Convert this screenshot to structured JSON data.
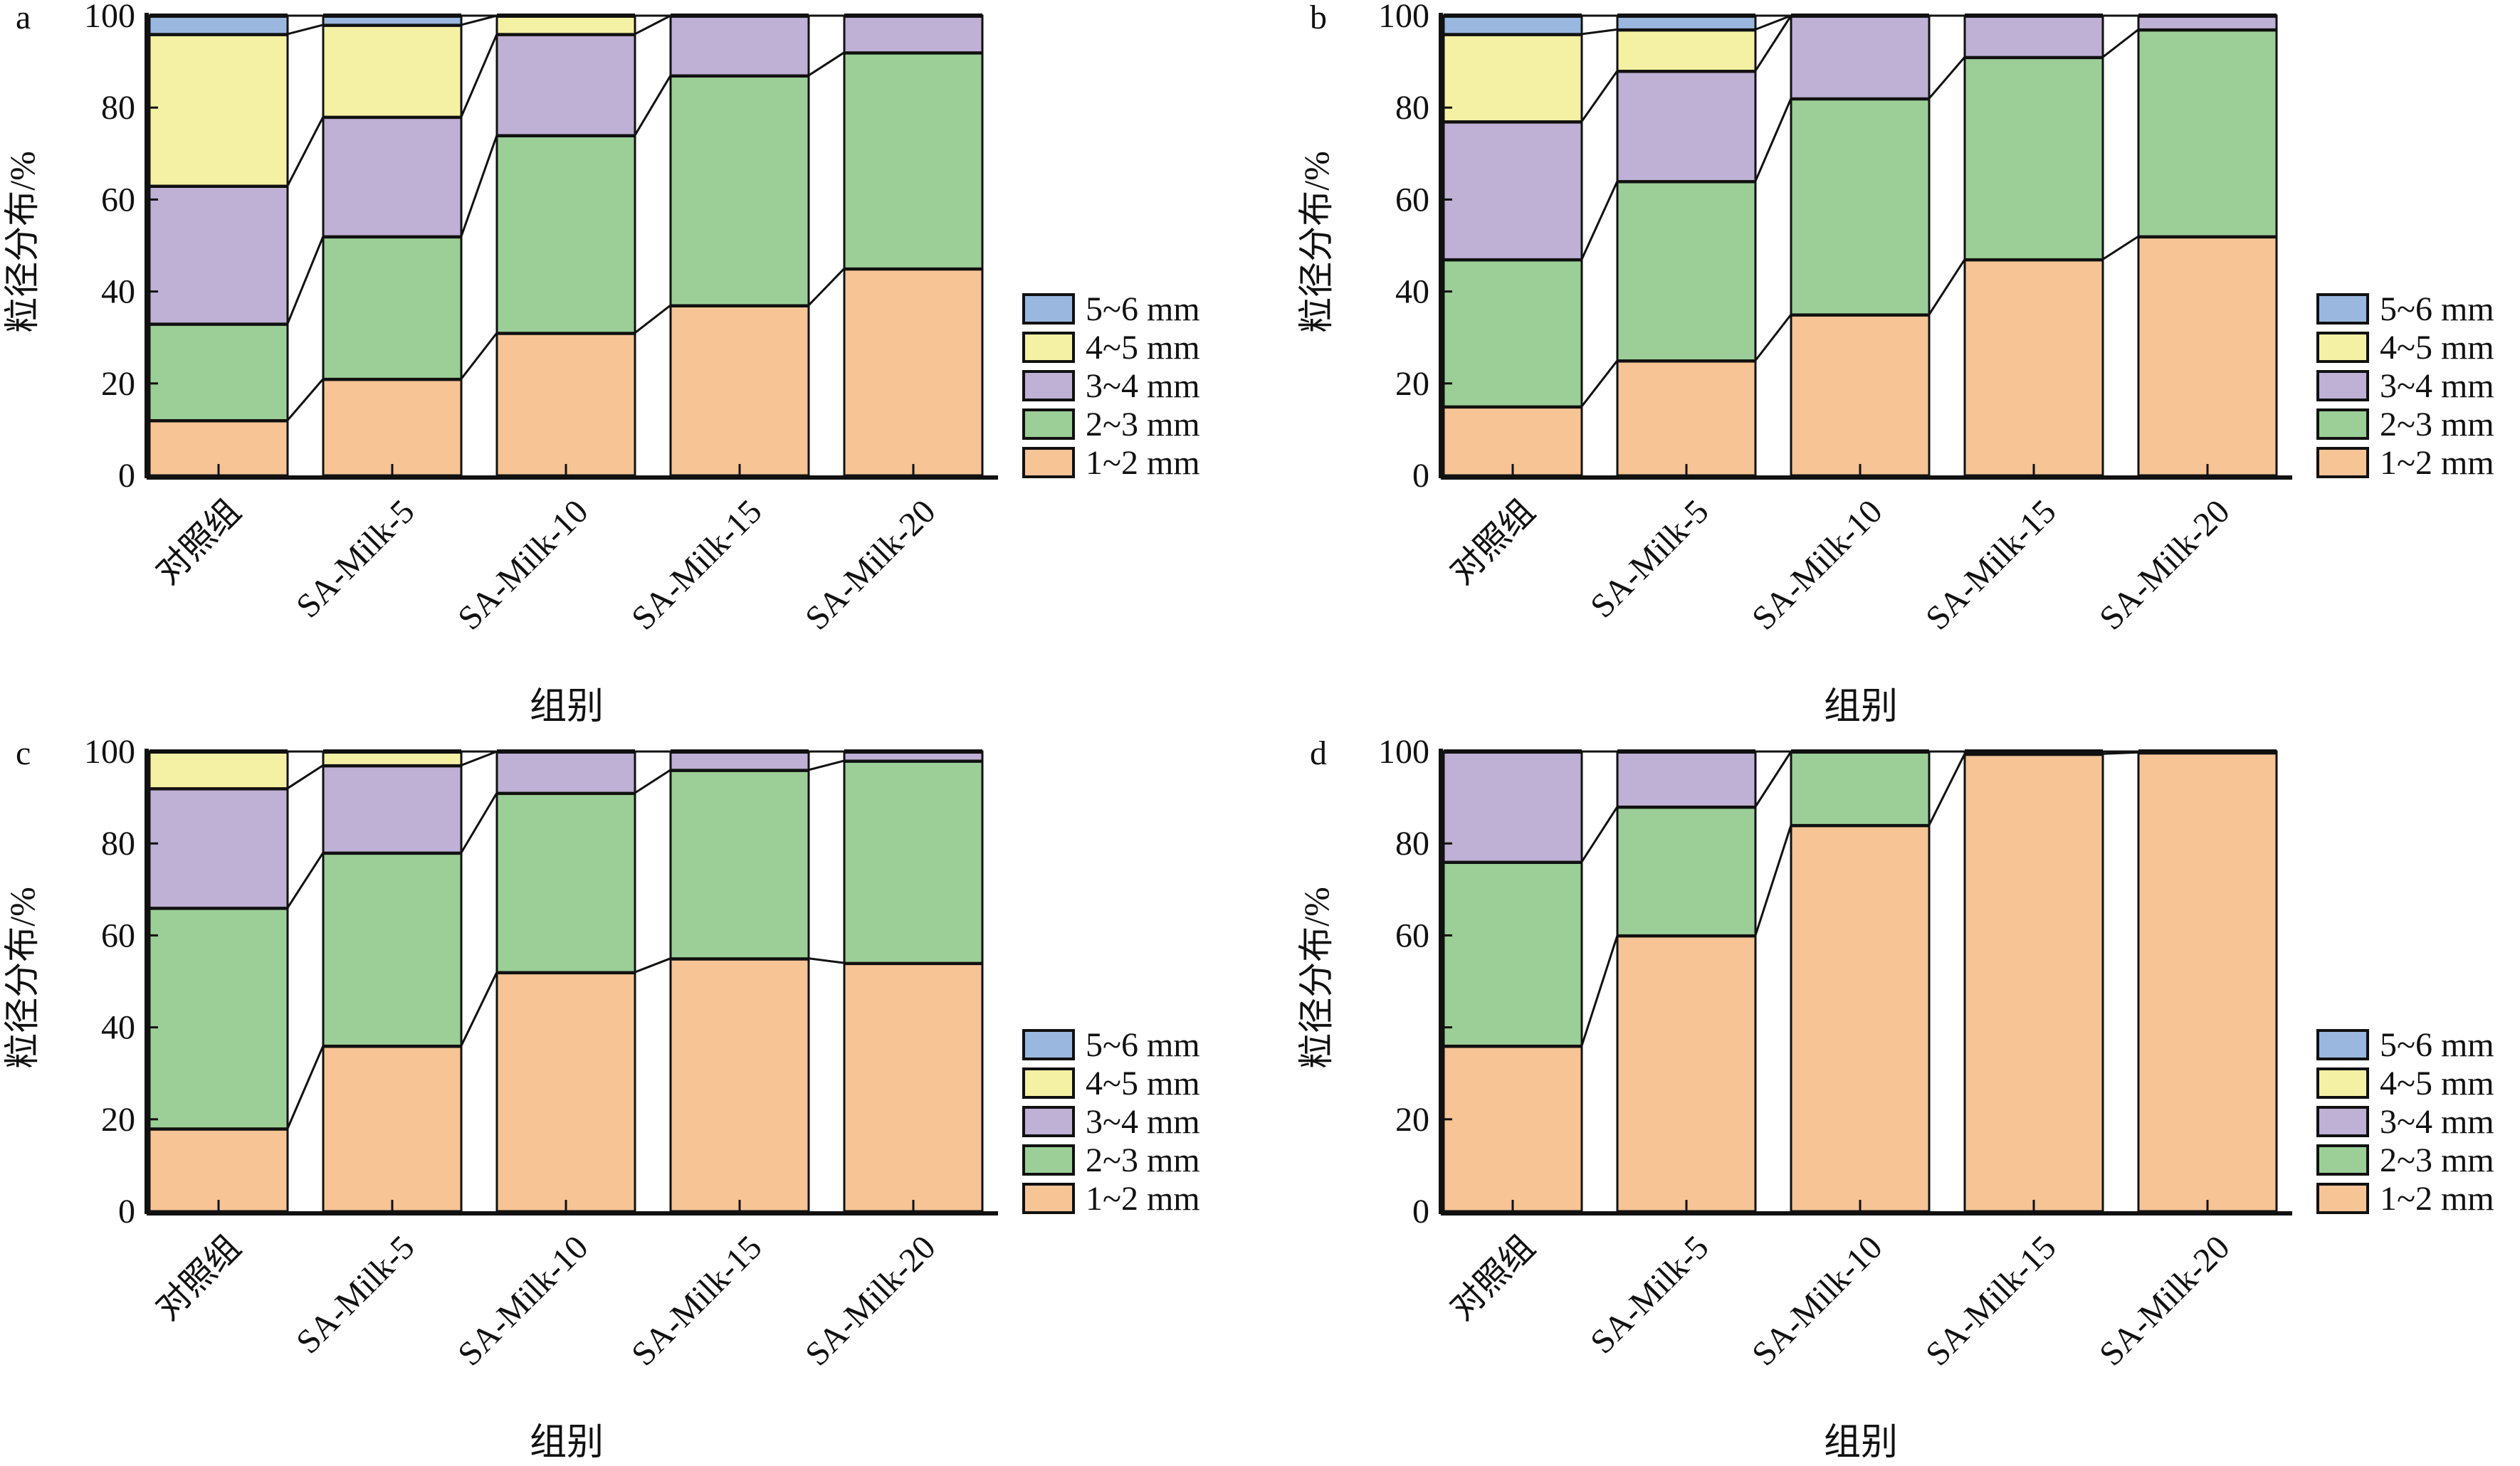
{
  "chart_data": [
    {
      "type": "bar",
      "stacked": true,
      "panel_label": "a",
      "categories": [
        "对照组",
        "SA-Milk-5",
        "SA-Milk-10",
        "SA-Milk-15",
        "SA-Milk-20"
      ],
      "xlabel": "组别",
      "ylabel": "粒径分布/%",
      "ylim": [
        0,
        100
      ],
      "yticks": [
        "0",
        "20",
        "40",
        "60",
        "80",
        "100"
      ],
      "legend_position": "right-bottom",
      "series": [
        {
          "name": "1~2 mm",
          "color": "#f6c495",
          "values": [
            12,
            21,
            31,
            37,
            45
          ]
        },
        {
          "name": "2~3 mm",
          "color": "#9bcf97",
          "values": [
            21,
            31,
            43,
            50,
            47
          ]
        },
        {
          "name": "3~4 mm",
          "color": "#bfb0d5",
          "values": [
            30,
            26,
            22,
            13,
            8
          ]
        },
        {
          "name": "4~5 mm",
          "color": "#f5f1a4",
          "values": [
            33,
            20,
            4,
            0,
            0
          ]
        },
        {
          "name": "5~6 mm",
          "color": "#9ab7df",
          "values": [
            4,
            2,
            0,
            0,
            0
          ]
        }
      ]
    },
    {
      "type": "bar",
      "stacked": true,
      "panel_label": "b",
      "categories": [
        "对照组",
        "SA-Milk-5",
        "SA-Milk-10",
        "SA-Milk-15",
        "SA-Milk-20"
      ],
      "xlabel": "组别",
      "ylabel": "粒径分布/%",
      "ylim": [
        0,
        100
      ],
      "yticks": [
        "0",
        "20",
        "40",
        "60",
        "80",
        "100"
      ],
      "legend_position": "right-bottom",
      "series": [
        {
          "name": "1~2 mm",
          "color": "#f6c495",
          "values": [
            15,
            25,
            35,
            47,
            52
          ]
        },
        {
          "name": "2~3 mm",
          "color": "#9bcf97",
          "values": [
            32,
            39,
            47,
            44,
            45
          ]
        },
        {
          "name": "3~4 mm",
          "color": "#bfb0d5",
          "values": [
            30,
            24,
            18,
            9,
            3
          ]
        },
        {
          "name": "4~5 mm",
          "color": "#f5f1a4",
          "values": [
            19,
            9,
            0,
            0,
            0
          ]
        },
        {
          "name": "5~6 mm",
          "color": "#9ab7df",
          "values": [
            4,
            3,
            0,
            0,
            0
          ]
        }
      ]
    },
    {
      "type": "bar",
      "stacked": true,
      "panel_label": "c",
      "categories": [
        "对照组",
        "SA-Milk-5",
        "SA-Milk-10",
        "SA-Milk-15",
        "SA-Milk-20"
      ],
      "xlabel": "组别",
      "ylabel": "粒径分布/%",
      "ylim": [
        0,
        100
      ],
      "yticks": [
        "0",
        "20",
        "40",
        "60",
        "80",
        "100"
      ],
      "legend_position": "right-bottom",
      "series": [
        {
          "name": "1~2 mm",
          "color": "#f6c495",
          "values": [
            18,
            36,
            52,
            55,
            54
          ]
        },
        {
          "name": "2~3 mm",
          "color": "#9bcf97",
          "values": [
            48,
            42,
            39,
            41,
            44
          ]
        },
        {
          "name": "3~4 mm",
          "color": "#bfb0d5",
          "values": [
            26,
            19,
            9,
            4,
            2
          ]
        },
        {
          "name": "4~5 mm",
          "color": "#f5f1a4",
          "values": [
            8,
            3,
            0,
            0,
            0
          ]
        },
        {
          "name": "5~6 mm",
          "color": "#9ab7df",
          "values": [
            0,
            0,
            0,
            0,
            0
          ]
        }
      ]
    },
    {
      "type": "bar",
      "stacked": true,
      "panel_label": "d",
      "categories": [
        "对照组",
        "SA-Milk-5",
        "SA-Milk-10",
        "SA-Milk-15",
        "SA-Milk-20"
      ],
      "xlabel": "组别",
      "ylabel": "粒径分布/%",
      "ylim": [
        0,
        100
      ],
      "yticks": [
        "0",
        "20",
        "",
        "60",
        "80",
        "100"
      ],
      "legend_position": "right-bottom",
      "series": [
        {
          "name": "1~2 mm",
          "color": "#f6c495",
          "values": [
            36,
            60,
            84,
            99.5,
            99.8
          ]
        },
        {
          "name": "2~3 mm",
          "color": "#9bcf97",
          "values": [
            40,
            28,
            16,
            0.5,
            0.2
          ]
        },
        {
          "name": "3~4 mm",
          "color": "#bfb0d5",
          "values": [
            24,
            12,
            0,
            0,
            0
          ]
        },
        {
          "name": "4~5 mm",
          "color": "#f5f1a4",
          "values": [
            0,
            0,
            0,
            0,
            0
          ]
        },
        {
          "name": "5~6 mm",
          "color": "#9ab7df",
          "values": [
            0,
            0,
            0,
            0,
            0
          ]
        }
      ]
    }
  ]
}
